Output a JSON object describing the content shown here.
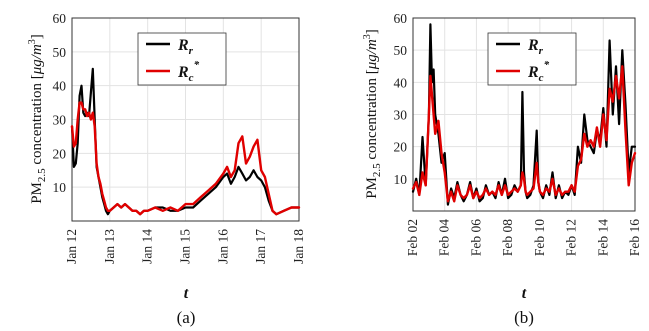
{
  "chart_data": [
    {
      "type": "line",
      "caption": "(a)",
      "xlabel": "t",
      "ylabel": "PM2.5 concentration [μg/m3]",
      "ylabel_parts": {
        "pre": "PM",
        "sub": "2.5",
        "mid": " concentration [",
        "mu": "μ",
        "unit": "g/m",
        "sup": "3",
        "close": "]"
      },
      "ylim": [
        0,
        60
      ],
      "yticks": [
        "10",
        "20",
        "30",
        "40",
        "50",
        "60"
      ],
      "xlim": [
        "Jan 12",
        "Jan 18"
      ],
      "xticks": [
        "Jan 12",
        "Jan 13",
        "Jan 14",
        "Jan 15",
        "Jan 16",
        "Jan 17",
        "Jan 18"
      ],
      "grid": true,
      "legend_placement": "top-center",
      "series": [
        {
          "name": "Rr",
          "label_main": "R",
          "label_sub": "r",
          "label_sup": "",
          "color": "#000000",
          "x": [
            0,
            0.05,
            0.1,
            0.15,
            0.2,
            0.25,
            0.3,
            0.35,
            0.4,
            0.45,
            0.5,
            0.55,
            0.6,
            0.65,
            0.7,
            0.75,
            0.8,
            0.85,
            0.9,
            0.95,
            1.0,
            1.1,
            1.2,
            1.3,
            1.4,
            1.5,
            1.6,
            1.7,
            1.8,
            1.9,
            2.0,
            2.2,
            2.4,
            2.6,
            2.8,
            3.0,
            3.2,
            3.4,
            3.6,
            3.8,
            4.0,
            4.1,
            4.2,
            4.3,
            4.4,
            4.5,
            4.6,
            4.7,
            4.8,
            4.9,
            5.0,
            5.1,
            5.2,
            5.3,
            5.4,
            5.6,
            5.8,
            6.0
          ],
          "y": [
            28,
            16,
            17,
            23,
            37,
            40,
            32,
            31,
            32,
            31,
            38,
            45,
            30,
            16,
            13,
            10,
            7,
            5,
            3,
            2,
            3,
            4,
            5,
            4,
            5,
            4,
            3,
            3,
            2,
            3,
            3,
            4,
            4,
            3,
            3,
            4,
            4,
            6,
            8,
            10,
            13,
            14,
            11,
            13,
            16,
            14,
            12,
            13,
            15,
            13,
            12,
            10,
            6,
            3,
            2,
            3,
            4,
            4
          ]
        },
        {
          "name": "Rc*",
          "label_main": "R",
          "label_sub": "c",
          "label_sup": "*",
          "color": "#e00000",
          "x": [
            0,
            0.05,
            0.1,
            0.15,
            0.2,
            0.25,
            0.3,
            0.35,
            0.4,
            0.45,
            0.5,
            0.55,
            0.6,
            0.65,
            0.7,
            0.75,
            0.8,
            0.85,
            0.9,
            0.95,
            1.0,
            1.1,
            1.2,
            1.3,
            1.4,
            1.5,
            1.6,
            1.7,
            1.8,
            1.9,
            2.0,
            2.2,
            2.4,
            2.6,
            2.8,
            3.0,
            3.2,
            3.4,
            3.6,
            3.8,
            4.0,
            4.1,
            4.2,
            4.3,
            4.4,
            4.5,
            4.6,
            4.7,
            4.8,
            4.9,
            5.0,
            5.1,
            5.2,
            5.3,
            5.4,
            5.6,
            5.8,
            6.0
          ],
          "y": [
            28,
            22,
            23,
            30,
            35,
            35,
            33,
            33,
            31,
            32,
            30,
            32,
            28,
            17,
            13,
            11,
            8,
            6,
            4,
            3,
            3,
            4,
            5,
            4,
            5,
            4,
            3,
            3,
            2,
            3,
            3,
            4,
            3,
            4,
            3,
            5,
            5,
            7,
            9,
            11,
            14,
            16,
            13,
            15,
            23,
            25,
            17,
            19,
            22,
            24,
            15,
            13,
            8,
            3,
            2,
            3,
            4,
            4
          ]
        }
      ]
    },
    {
      "type": "line",
      "caption": "(b)",
      "xlabel": "t",
      "ylabel": "PM2.5 concentration [μg/m3]",
      "ylabel_parts": {
        "pre": "PM",
        "sub": "2.5",
        "mid": " concentration [",
        "mu": "μ",
        "unit": "g/m",
        "sup": "3",
        "close": "]"
      },
      "ylim": [
        0,
        60
      ],
      "yticks": [
        "10",
        "20",
        "30",
        "40",
        "50",
        "60"
      ],
      "xlim": [
        "Feb 02",
        "Feb 16"
      ],
      "xticks": [
        "Feb 02",
        "Feb 04",
        "Feb 06",
        "Feb 08",
        "Feb 10",
        "Feb 12",
        "Feb 14",
        "Feb 16"
      ],
      "grid": true,
      "legend_placement": "top-center",
      "series": [
        {
          "name": "Rr",
          "label_main": "R",
          "label_sub": "r",
          "label_sup": "",
          "color": "#000000",
          "x": [
            0,
            0.2,
            0.4,
            0.6,
            0.8,
            1.0,
            1.1,
            1.2,
            1.3,
            1.4,
            1.6,
            1.8,
            2.0,
            2.2,
            2.4,
            2.6,
            2.8,
            3.0,
            3.2,
            3.4,
            3.6,
            3.8,
            4.0,
            4.2,
            4.4,
            4.6,
            4.8,
            5.0,
            5.2,
            5.4,
            5.6,
            5.8,
            6.0,
            6.2,
            6.4,
            6.6,
            6.8,
            6.9,
            7.0,
            7.1,
            7.2,
            7.4,
            7.6,
            7.8,
            7.9,
            8.0,
            8.2,
            8.4,
            8.6,
            8.8,
            9.0,
            9.2,
            9.4,
            9.6,
            9.8,
            10.0,
            10.2,
            10.4,
            10.6,
            10.8,
            11.0,
            11.2,
            11.4,
            11.6,
            11.8,
            12.0,
            12.2,
            12.4,
            12.6,
            12.8,
            13.0,
            13.2,
            13.4,
            13.6,
            13.8,
            14.0
          ],
          "y": [
            6,
            10,
            5,
            23,
            8,
            30,
            58,
            40,
            44,
            30,
            24,
            15,
            18,
            2,
            7,
            4,
            9,
            5,
            3,
            5,
            9,
            4,
            7,
            3,
            4,
            8,
            5,
            6,
            4,
            9,
            5,
            10,
            4,
            5,
            8,
            6,
            8,
            37,
            12,
            6,
            4,
            5,
            8,
            25,
            9,
            6,
            4,
            8,
            5,
            12,
            4,
            8,
            4,
            6,
            5,
            8,
            5,
            20,
            15,
            30,
            22,
            20,
            18,
            25,
            22,
            32,
            20,
            53,
            30,
            45,
            27,
            50,
            33,
            12,
            20,
            20
          ]
        },
        {
          "name": "Rc*",
          "label_main": "R",
          "label_sub": "c",
          "label_sup": "*",
          "color": "#e00000",
          "x": [
            0,
            0.2,
            0.4,
            0.6,
            0.8,
            1.0,
            1.1,
            1.2,
            1.3,
            1.4,
            1.6,
            1.8,
            2.0,
            2.2,
            2.4,
            2.6,
            2.8,
            3.0,
            3.2,
            3.4,
            3.6,
            3.8,
            4.0,
            4.2,
            4.4,
            4.6,
            4.8,
            5.0,
            5.2,
            5.4,
            5.6,
            5.8,
            6.0,
            6.2,
            6.4,
            6.6,
            6.8,
            6.9,
            7.0,
            7.1,
            7.2,
            7.4,
            7.6,
            7.8,
            7.9,
            8.0,
            8.2,
            8.4,
            8.6,
            8.8,
            9.0,
            9.2,
            9.4,
            9.6,
            9.8,
            10.0,
            10.2,
            10.4,
            10.6,
            10.8,
            11.0,
            11.2,
            11.4,
            11.6,
            11.8,
            12.0,
            12.2,
            12.4,
            12.6,
            12.8,
            13.0,
            13.2,
            13.4,
            13.6,
            13.8,
            14.0
          ],
          "y": [
            7,
            9,
            5,
            12,
            8,
            30,
            42,
            36,
            30,
            24,
            28,
            18,
            12,
            3,
            6,
            3,
            8,
            5,
            4,
            5,
            8,
            4,
            6,
            4,
            5,
            7,
            5,
            6,
            5,
            8,
            5,
            8,
            5,
            6,
            7,
            6,
            8,
            12,
            10,
            6,
            5,
            6,
            7,
            15,
            9,
            6,
            5,
            7,
            6,
            10,
            5,
            7,
            5,
            6,
            6,
            8,
            6,
            14,
            16,
            24,
            20,
            22,
            20,
            26,
            20,
            30,
            22,
            38,
            34,
            42,
            35,
            45,
            25,
            8,
            15,
            18
          ]
        }
      ]
    }
  ]
}
